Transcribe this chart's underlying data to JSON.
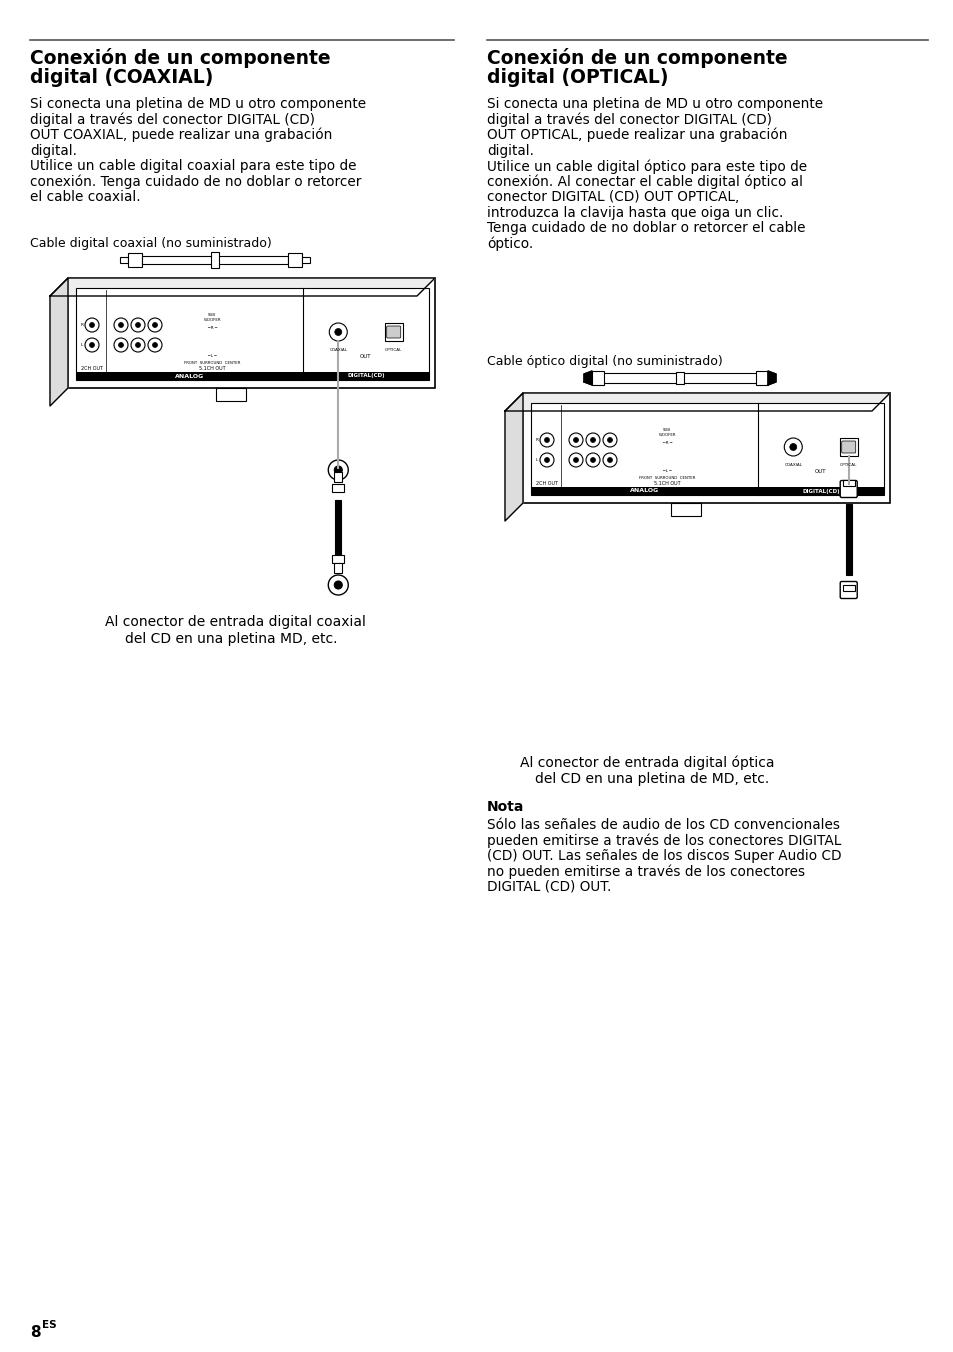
{
  "bg_color": "#ffffff",
  "left_title_line1": "Conexión de un componente",
  "left_title_line2": "digital (COAXIAL)",
  "right_title_line1": "Conexión de un componente",
  "right_title_line2": "digital (OPTICAL)",
  "left_body_lines": [
    "Si conecta una pletina de MD u otro componente",
    "digital a través del conector DIGITAL (CD)",
    "OUT COAXIAL, puede realizar una grabación",
    "digital.",
    "Utilice un cable digital coaxial para este tipo de",
    "conexión. Tenga cuidado de no doblar o retorcer",
    "el cable coaxial."
  ],
  "right_body_lines": [
    "Si conecta una pletina de MD u otro componente",
    "digital a través del conector DIGITAL (CD)",
    "OUT OPTICAL, puede realizar una grabación",
    "digital.",
    "Utilice un cable digital óptico para este tipo de",
    "conexión. Al conectar el cable digital óptico al",
    "conector DIGITAL (CD) OUT OPTICAL,",
    "introduzca la clavija hasta que oiga un clic.",
    "Tenga cuidado de no doblar o retorcer el cable",
    "óptico."
  ],
  "left_cable_label": "Cable digital coaxial (no suministrado)",
  "right_cable_label": "Cable óptico digital (no suministrado)",
  "left_caption_line1": "Al conector de entrada digital coaxial",
  "left_caption_line2": "del CD en una pletina MD, etc.",
  "right_caption_line1": "Al conector de entrada digital óptica",
  "right_caption_line2": "del CD en una pletina de MD, etc.",
  "nota_title": "Nota",
  "nota_body_lines": [
    "Sólo las señales de audio de los CD convencionales",
    "pueden emitirse a través de los conectores DIGITAL",
    "(CD) OUT. Las señales de los discos Super Audio CD",
    "no pueden emitirse a través de los conectores",
    "DIGITAL (CD) OUT."
  ],
  "page_num": "8",
  "page_super": "ES"
}
